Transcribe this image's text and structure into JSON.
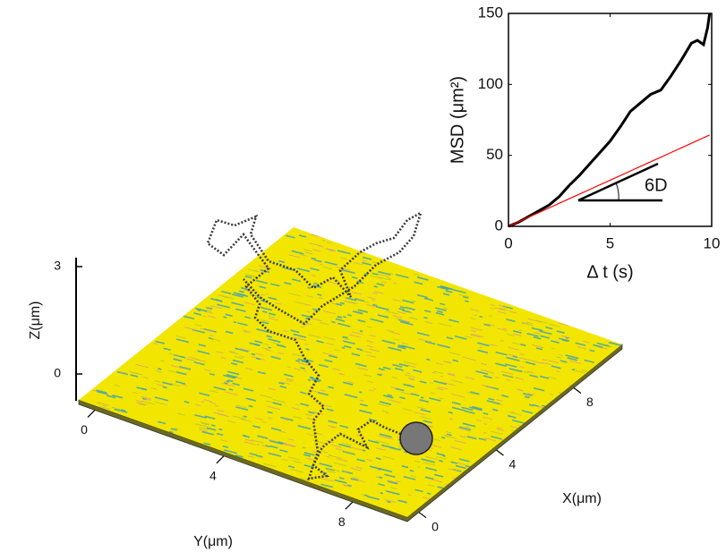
{
  "chart_data": [
    {
      "type": "surface3d",
      "xlabel": "X(μm)",
      "ylabel": "Y(μm)",
      "zlabel": "Z(μm)",
      "xlim": [
        -0.6,
        10.5
      ],
      "ylim": [
        -0.5,
        9.7
      ],
      "zlim": [
        -0.75,
        3.25
      ],
      "xticks": [
        0,
        4,
        8
      ],
      "yticks": [
        0,
        4,
        8
      ],
      "zticks": [
        0,
        3
      ],
      "color": "#f2e600"
    },
    {
      "type": "line",
      "xlabel": "Δ t (s)",
      "ylabel": "MSD (μm²)",
      "x": [
        0,
        0.5,
        1,
        1.5,
        2,
        2.5,
        3,
        3.5,
        4,
        4.5,
        5,
        5.5,
        6,
        6.5,
        7,
        7.5,
        8,
        8.5,
        9,
        9.3,
        9.6,
        9.8,
        9.9
      ],
      "series": [
        {
          "color": "#000000",
          "values": [
            0,
            3,
            7,
            11,
            15,
            21,
            29,
            36,
            44,
            52,
            60,
            70,
            81,
            87,
            93,
            96,
            106,
            117,
            129,
            131,
            128,
            140,
            150
          ]
        },
        {
          "color": "#ff0000",
          "values": [
            0,
            3.25,
            6.5,
            9.75,
            13,
            16.25,
            19.5,
            22.75,
            26,
            29.25,
            32.5,
            35.75,
            39,
            42.25,
            45.5,
            48.75,
            52,
            55.25,
            58.5,
            60.45,
            62.4,
            63.7,
            64.35
          ]
        }
      ],
      "xlim": [
        0,
        10
      ],
      "ylim": [
        0,
        150
      ],
      "xticks": [
        0,
        5,
        10
      ],
      "yticks": [
        0,
        50,
        100,
        150
      ],
      "annotation": "6D"
    }
  ]
}
